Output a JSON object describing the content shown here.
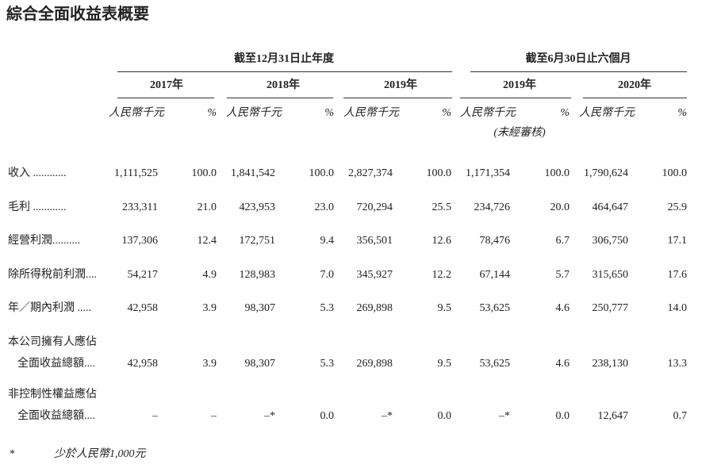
{
  "title": "綜合全面收益表概要",
  "groups": [
    "截至12月31日止年度",
    "截至6月30日止六個月"
  ],
  "years": [
    "2017年",
    "2018年",
    "2019年",
    "2019年",
    "2020年"
  ],
  "unit": "人民幣千元",
  "percent": "%",
  "unaudited": "(未經審核)",
  "rows": [
    {
      "label": [
        "收入 ............"
      ],
      "values": [
        "1,111,525",
        "100.0",
        "1,841,542",
        "100.0",
        "2,827,374",
        "100.0",
        "1,171,354",
        "100.0",
        "1,790,624",
        "100.0"
      ]
    },
    {
      "label": [
        "毛利 ............"
      ],
      "values": [
        "233,311",
        "21.0",
        "423,953",
        "23.0",
        "720,294",
        "25.5",
        "234,726",
        "20.0",
        "464,647",
        "25.9"
      ]
    },
    {
      "label": [
        "經營利潤.........."
      ],
      "values": [
        "137,306",
        "12.4",
        "172,751",
        "9.4",
        "356,501",
        "12.6",
        "78,476",
        "6.7",
        "306,750",
        "17.1"
      ]
    },
    {
      "label": [
        "除所得稅前利潤...."
      ],
      "values": [
        "54,217",
        "4.9",
        "128,983",
        "7.0",
        "345,927",
        "12.2",
        "67,144",
        "5.7",
        "315,650",
        "17.6"
      ]
    },
    {
      "label": [
        "年／期內利潤 ....."
      ],
      "values": [
        "42,958",
        "3.9",
        "98,307",
        "5.3",
        "269,898",
        "9.5",
        "53,625",
        "4.6",
        "250,777",
        "14.0"
      ]
    },
    {
      "label": [
        "本公司擁有人應佔",
        "全面收益總額...."
      ],
      "values": [
        "42,958",
        "3.9",
        "98,307",
        "5.3",
        "269,898",
        "9.5",
        "53,625",
        "4.6",
        "238,130",
        "13.3"
      ]
    },
    {
      "label": [
        "非控制性權益應佔",
        "全面收益總額...."
      ],
      "values": [
        "–",
        "–",
        "–*",
        "0.0",
        "–*",
        "0.0",
        "–*",
        "0.0",
        "12,647",
        "0.7"
      ]
    }
  ],
  "footnote": {
    "mark": "*",
    "text": "少於人民幣1,000元"
  }
}
